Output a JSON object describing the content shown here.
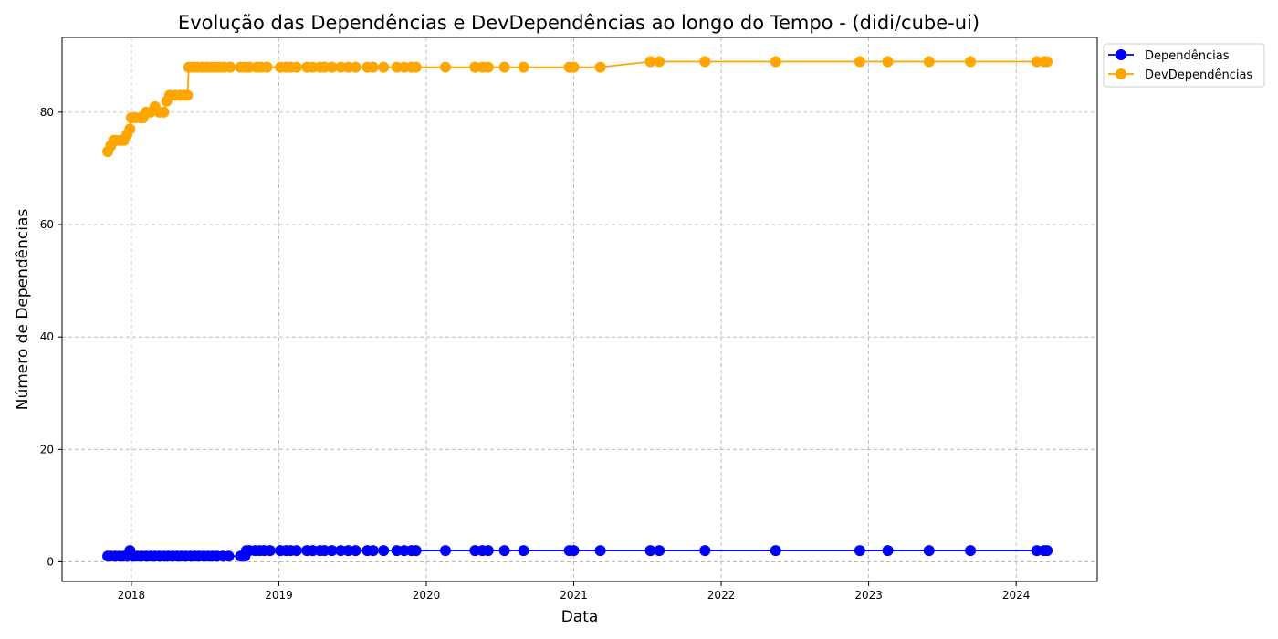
{
  "chart_data": {
    "type": "line",
    "title": "Evolução das Dependências e DevDependências ao longo do Tempo - (didi/cube-ui)",
    "xlabel": "Data",
    "ylabel": "Número de Dependências",
    "xlim": [
      2017.53,
      2024.55
    ],
    "ylim": [
      -3.5,
      93.3
    ],
    "xticks": [
      {
        "value": 2018,
        "label": "2018"
      },
      {
        "value": 2019,
        "label": "2019"
      },
      {
        "value": 2020,
        "label": "2020"
      },
      {
        "value": 2021,
        "label": "2021"
      },
      {
        "value": 2022,
        "label": "2022"
      },
      {
        "value": 2023,
        "label": "2023"
      },
      {
        "value": 2024,
        "label": "2024"
      }
    ],
    "yticks": [
      {
        "value": 0,
        "label": "0"
      },
      {
        "value": 20,
        "label": "20"
      },
      {
        "value": 40,
        "label": "40"
      },
      {
        "value": 60,
        "label": "60"
      },
      {
        "value": 80,
        "label": "80"
      }
    ],
    "grid": true,
    "legend_position": "top-right",
    "series": [
      {
        "name": "Dependências",
        "color": "#0000ff",
        "points": [
          [
            2017.84,
            1
          ],
          [
            2017.86,
            1
          ],
          [
            2017.89,
            1
          ],
          [
            2017.92,
            1
          ],
          [
            2017.95,
            1
          ],
          [
            2017.97,
            1
          ],
          [
            2017.99,
            2
          ],
          [
            2018.01,
            1
          ],
          [
            2018.04,
            1
          ],
          [
            2018.07,
            1
          ],
          [
            2018.1,
            1
          ],
          [
            2018.13,
            1
          ],
          [
            2018.16,
            1
          ],
          [
            2018.19,
            1
          ],
          [
            2018.22,
            1
          ],
          [
            2018.25,
            1
          ],
          [
            2018.28,
            1
          ],
          [
            2018.31,
            1
          ],
          [
            2018.34,
            1
          ],
          [
            2018.37,
            1
          ],
          [
            2018.4,
            1
          ],
          [
            2018.43,
            1
          ],
          [
            2018.46,
            1
          ],
          [
            2018.49,
            1
          ],
          [
            2018.52,
            1
          ],
          [
            2018.55,
            1
          ],
          [
            2018.58,
            1
          ],
          [
            2018.62,
            1
          ],
          [
            2018.66,
            1
          ],
          [
            2018.74,
            1
          ],
          [
            2018.77,
            1
          ],
          [
            2018.78,
            2
          ],
          [
            2018.8,
            2
          ],
          [
            2018.84,
            2
          ],
          [
            2018.87,
            2
          ],
          [
            2018.9,
            2
          ],
          [
            2018.94,
            2
          ],
          [
            2019.01,
            2
          ],
          [
            2019.05,
            2
          ],
          [
            2019.08,
            2
          ],
          [
            2019.12,
            2
          ],
          [
            2019.19,
            2
          ],
          [
            2019.23,
            2
          ],
          [
            2019.28,
            2
          ],
          [
            2019.31,
            2
          ],
          [
            2019.36,
            2
          ],
          [
            2019.42,
            2
          ],
          [
            2019.47,
            2
          ],
          [
            2019.52,
            2
          ],
          [
            2019.6,
            2
          ],
          [
            2019.64,
            2
          ],
          [
            2019.71,
            2
          ],
          [
            2019.8,
            2
          ],
          [
            2019.85,
            2
          ],
          [
            2019.9,
            2
          ],
          [
            2019.93,
            2
          ],
          [
            2020.13,
            2
          ],
          [
            2020.33,
            2
          ],
          [
            2020.38,
            2
          ],
          [
            2020.42,
            2
          ],
          [
            2020.53,
            2
          ],
          [
            2020.66,
            2
          ],
          [
            2020.97,
            2
          ],
          [
            2021.0,
            2
          ],
          [
            2021.18,
            2
          ],
          [
            2021.52,
            2
          ],
          [
            2021.58,
            2
          ],
          [
            2021.89,
            2
          ],
          [
            2022.37,
            2
          ],
          [
            2022.94,
            2
          ],
          [
            2023.13,
            2
          ],
          [
            2023.41,
            2
          ],
          [
            2023.69,
            2
          ],
          [
            2024.14,
            2
          ],
          [
            2024.19,
            2
          ],
          [
            2024.21,
            2
          ]
        ]
      },
      {
        "name": "DevDependências",
        "color": "#ffa500",
        "points": [
          [
            2017.84,
            73
          ],
          [
            2017.86,
            74
          ],
          [
            2017.88,
            75
          ],
          [
            2017.9,
            75
          ],
          [
            2017.93,
            75
          ],
          [
            2017.95,
            75
          ],
          [
            2017.97,
            76
          ],
          [
            2017.99,
            77
          ],
          [
            2018.0,
            79
          ],
          [
            2018.03,
            79
          ],
          [
            2018.06,
            79
          ],
          [
            2018.08,
            79
          ],
          [
            2018.1,
            80
          ],
          [
            2018.13,
            80
          ],
          [
            2018.16,
            81
          ],
          [
            2018.19,
            80
          ],
          [
            2018.22,
            80
          ],
          [
            2018.24,
            82
          ],
          [
            2018.26,
            83
          ],
          [
            2018.3,
            83
          ],
          [
            2018.33,
            83
          ],
          [
            2018.36,
            83
          ],
          [
            2018.38,
            83
          ],
          [
            2018.39,
            88
          ],
          [
            2018.42,
            88
          ],
          [
            2018.45,
            88
          ],
          [
            2018.48,
            88
          ],
          [
            2018.51,
            88
          ],
          [
            2018.54,
            88
          ],
          [
            2018.57,
            88
          ],
          [
            2018.6,
            88
          ],
          [
            2018.63,
            88
          ],
          [
            2018.67,
            88
          ],
          [
            2018.74,
            88
          ],
          [
            2018.77,
            88
          ],
          [
            2018.8,
            88
          ],
          [
            2018.85,
            88
          ],
          [
            2018.88,
            88
          ],
          [
            2018.92,
            88
          ],
          [
            2019.01,
            88
          ],
          [
            2019.05,
            88
          ],
          [
            2019.08,
            88
          ],
          [
            2019.12,
            88
          ],
          [
            2019.19,
            88
          ],
          [
            2019.23,
            88
          ],
          [
            2019.28,
            88
          ],
          [
            2019.31,
            88
          ],
          [
            2019.36,
            88
          ],
          [
            2019.42,
            88
          ],
          [
            2019.47,
            88
          ],
          [
            2019.52,
            88
          ],
          [
            2019.6,
            88
          ],
          [
            2019.64,
            88
          ],
          [
            2019.71,
            88
          ],
          [
            2019.8,
            88
          ],
          [
            2019.85,
            88
          ],
          [
            2019.9,
            88
          ],
          [
            2019.93,
            88
          ],
          [
            2020.13,
            88
          ],
          [
            2020.33,
            88
          ],
          [
            2020.38,
            88
          ],
          [
            2020.42,
            88
          ],
          [
            2020.53,
            88
          ],
          [
            2020.66,
            88
          ],
          [
            2020.97,
            88
          ],
          [
            2021.0,
            88
          ],
          [
            2021.18,
            88
          ],
          [
            2021.52,
            89
          ],
          [
            2021.58,
            89
          ],
          [
            2021.89,
            89
          ],
          [
            2022.37,
            89
          ],
          [
            2022.94,
            89
          ],
          [
            2023.13,
            89
          ],
          [
            2023.41,
            89
          ],
          [
            2023.69,
            89
          ],
          [
            2024.14,
            89
          ],
          [
            2024.19,
            89
          ],
          [
            2024.21,
            89
          ]
        ]
      }
    ]
  }
}
